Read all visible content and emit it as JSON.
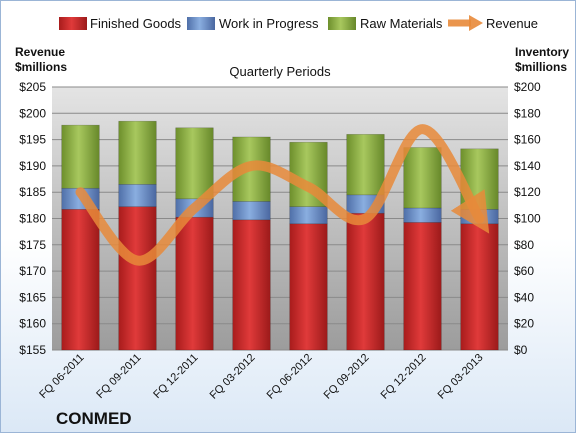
{
  "chart_data": {
    "type": "bar",
    "title": "Quarterly Periods",
    "company": "CONMED",
    "left_axis_label": [
      "Revenue",
      "$millions"
    ],
    "right_axis_label": [
      "Inventory",
      "$millions"
    ],
    "categories": [
      "FQ 06-2011",
      "FQ 09-2011",
      "FQ 12-2011",
      "FQ 03-2012",
      "FQ 06-2012",
      "FQ 09-2012",
      "FQ 12-2012",
      "FQ 03-2013"
    ],
    "left_ylim": [
      155,
      205
    ],
    "left_ticks": [
      "$155",
      "$160",
      "$165",
      "$170",
      "$175",
      "$180",
      "$185",
      "$190",
      "$195",
      "$200",
      "$205"
    ],
    "right_ylim": [
      0,
      200
    ],
    "right_ticks": [
      "$0",
      "$20",
      "$40",
      "$60",
      "$80",
      "$100",
      "$120",
      "$140",
      "$160",
      "$180",
      "$200"
    ],
    "legend_position": "top",
    "grid": true,
    "series": [
      {
        "name": "Finished Goods",
        "axis": "right",
        "color": "#cc2b2b",
        "values": [
          107,
          109,
          101,
          99,
          96,
          104,
          97,
          96
        ]
      },
      {
        "name": "Work in Progress",
        "axis": "right",
        "color": "#6a8fc8",
        "values": [
          16,
          17,
          14,
          14,
          13,
          14,
          11,
          11
        ]
      },
      {
        "name": "Raw Materials",
        "axis": "right",
        "color": "#8db043",
        "values": [
          48,
          48,
          54,
          49,
          49,
          46,
          46,
          46
        ]
      },
      {
        "name": "Revenue",
        "axis": "left",
        "color": "#e8893a",
        "values": [
          185,
          172,
          182,
          190,
          186,
          180,
          197,
          180
        ]
      }
    ]
  }
}
